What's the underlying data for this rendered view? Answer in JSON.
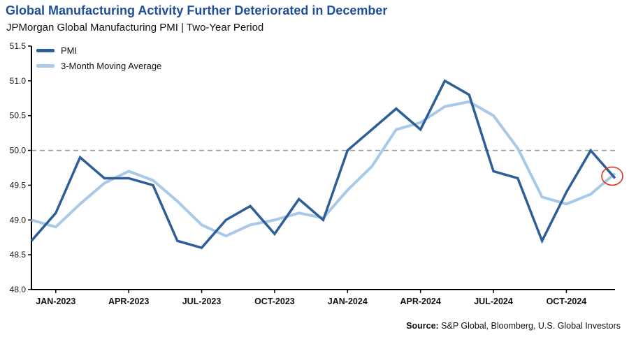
{
  "header": {
    "title": "Global Manufacturing Activity Further Deteriorated in December",
    "subtitle": "JPMorgan Global Manufacturing PMI | Two-Year  Period"
  },
  "legend": {
    "series1": "PMI",
    "series2": "3-Month Moving Average"
  },
  "source": {
    "label": "Source:",
    "text": " S&P Global, Bloomberg, U.S. Global Investors"
  },
  "colors": {
    "title": "#1F4E9A",
    "pmi": "#2E5E97",
    "ma": "#A8CAE8",
    "axis": "#000000",
    "dashed": "#9A9A9A",
    "annotation": "#E0301E"
  },
  "chart_data": {
    "type": "line",
    "title": "Global Manufacturing Activity Further Deteriorated in December",
    "subtitle": "JPMorgan Global Manufacturing PMI | Two-Year Period",
    "x": [
      "DEC-2022",
      "JAN-2023",
      "FEB-2023",
      "MAR-2023",
      "APR-2023",
      "MAY-2023",
      "JUN-2023",
      "JUL-2023",
      "AUG-2023",
      "SEP-2023",
      "OCT-2023",
      "NOV-2023",
      "DEC-2023",
      "JAN-2024",
      "FEB-2024",
      "MAR-2024",
      "APR-2024",
      "MAY-2024",
      "JUN-2024",
      "JUL-2024",
      "AUG-2024",
      "SEP-2024",
      "OCT-2024",
      "NOV-2024",
      "DEC-2024"
    ],
    "series": [
      {
        "name": "PMI",
        "color_key": "pmi",
        "values": [
          48.7,
          49.1,
          49.9,
          49.6,
          49.6,
          49.5,
          48.7,
          48.6,
          49.0,
          49.2,
          48.8,
          49.3,
          49.0,
          50.0,
          50.3,
          50.6,
          50.3,
          51.0,
          50.8,
          49.7,
          49.6,
          48.7,
          49.4,
          50.0,
          49.6
        ]
      },
      {
        "name": "3-Month Moving Average",
        "color_key": "ma",
        "values": [
          49.0,
          48.9,
          49.23,
          49.53,
          49.7,
          49.57,
          49.27,
          48.93,
          48.77,
          48.93,
          49.0,
          49.1,
          49.03,
          49.43,
          49.77,
          50.3,
          50.4,
          50.63,
          50.7,
          50.5,
          50.03,
          49.33,
          49.23,
          49.37,
          49.67
        ]
      }
    ],
    "ylim": [
      48.0,
      51.5
    ],
    "yticks": [
      48.0,
      48.5,
      49.0,
      49.5,
      50.0,
      50.5,
      51.0,
      51.5
    ],
    "xticks": [
      {
        "index": 1,
        "label": "JAN-2023"
      },
      {
        "index": 4,
        "label": "APR-2023"
      },
      {
        "index": 7,
        "label": "JUL-2023"
      },
      {
        "index": 10,
        "label": "OCT-2023"
      },
      {
        "index": 13,
        "label": "JAN-2024"
      },
      {
        "index": 16,
        "label": "APR-2024"
      },
      {
        "index": 19,
        "label": "JUL-2024"
      },
      {
        "index": 22,
        "label": "OCT-2024"
      }
    ],
    "reference_line": 50.0,
    "grid": false,
    "legend_position": "top-left",
    "annotation": {
      "shape": "ellipse",
      "x_index": 24,
      "value": 49.63
    }
  }
}
